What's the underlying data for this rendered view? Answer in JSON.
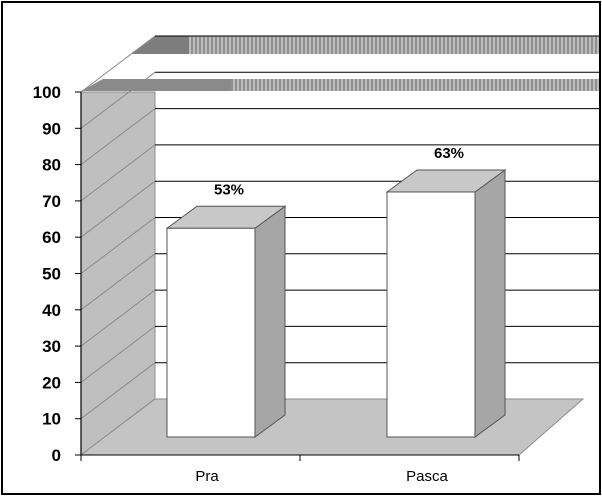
{
  "chart_data": {
    "type": "bar",
    "categories": [
      "Pra",
      "Pasca"
    ],
    "values": [
      53,
      63
    ],
    "data_labels": [
      "53%",
      "63%"
    ],
    "ylim": [
      0,
      100
    ],
    "yticks": [
      "0",
      "10",
      "20",
      "30",
      "40",
      "50",
      "60",
      "70",
      "80",
      "90",
      "100"
    ],
    "grid": true,
    "style": "3d-column",
    "colors": {
      "bar_front": "#ffffff",
      "bar_side": "#a6a6a6",
      "bar_top": "#c8c8c8",
      "wall": "#bfbfbf",
      "floor": "#c4c4c4",
      "gridline": "#000000"
    }
  }
}
